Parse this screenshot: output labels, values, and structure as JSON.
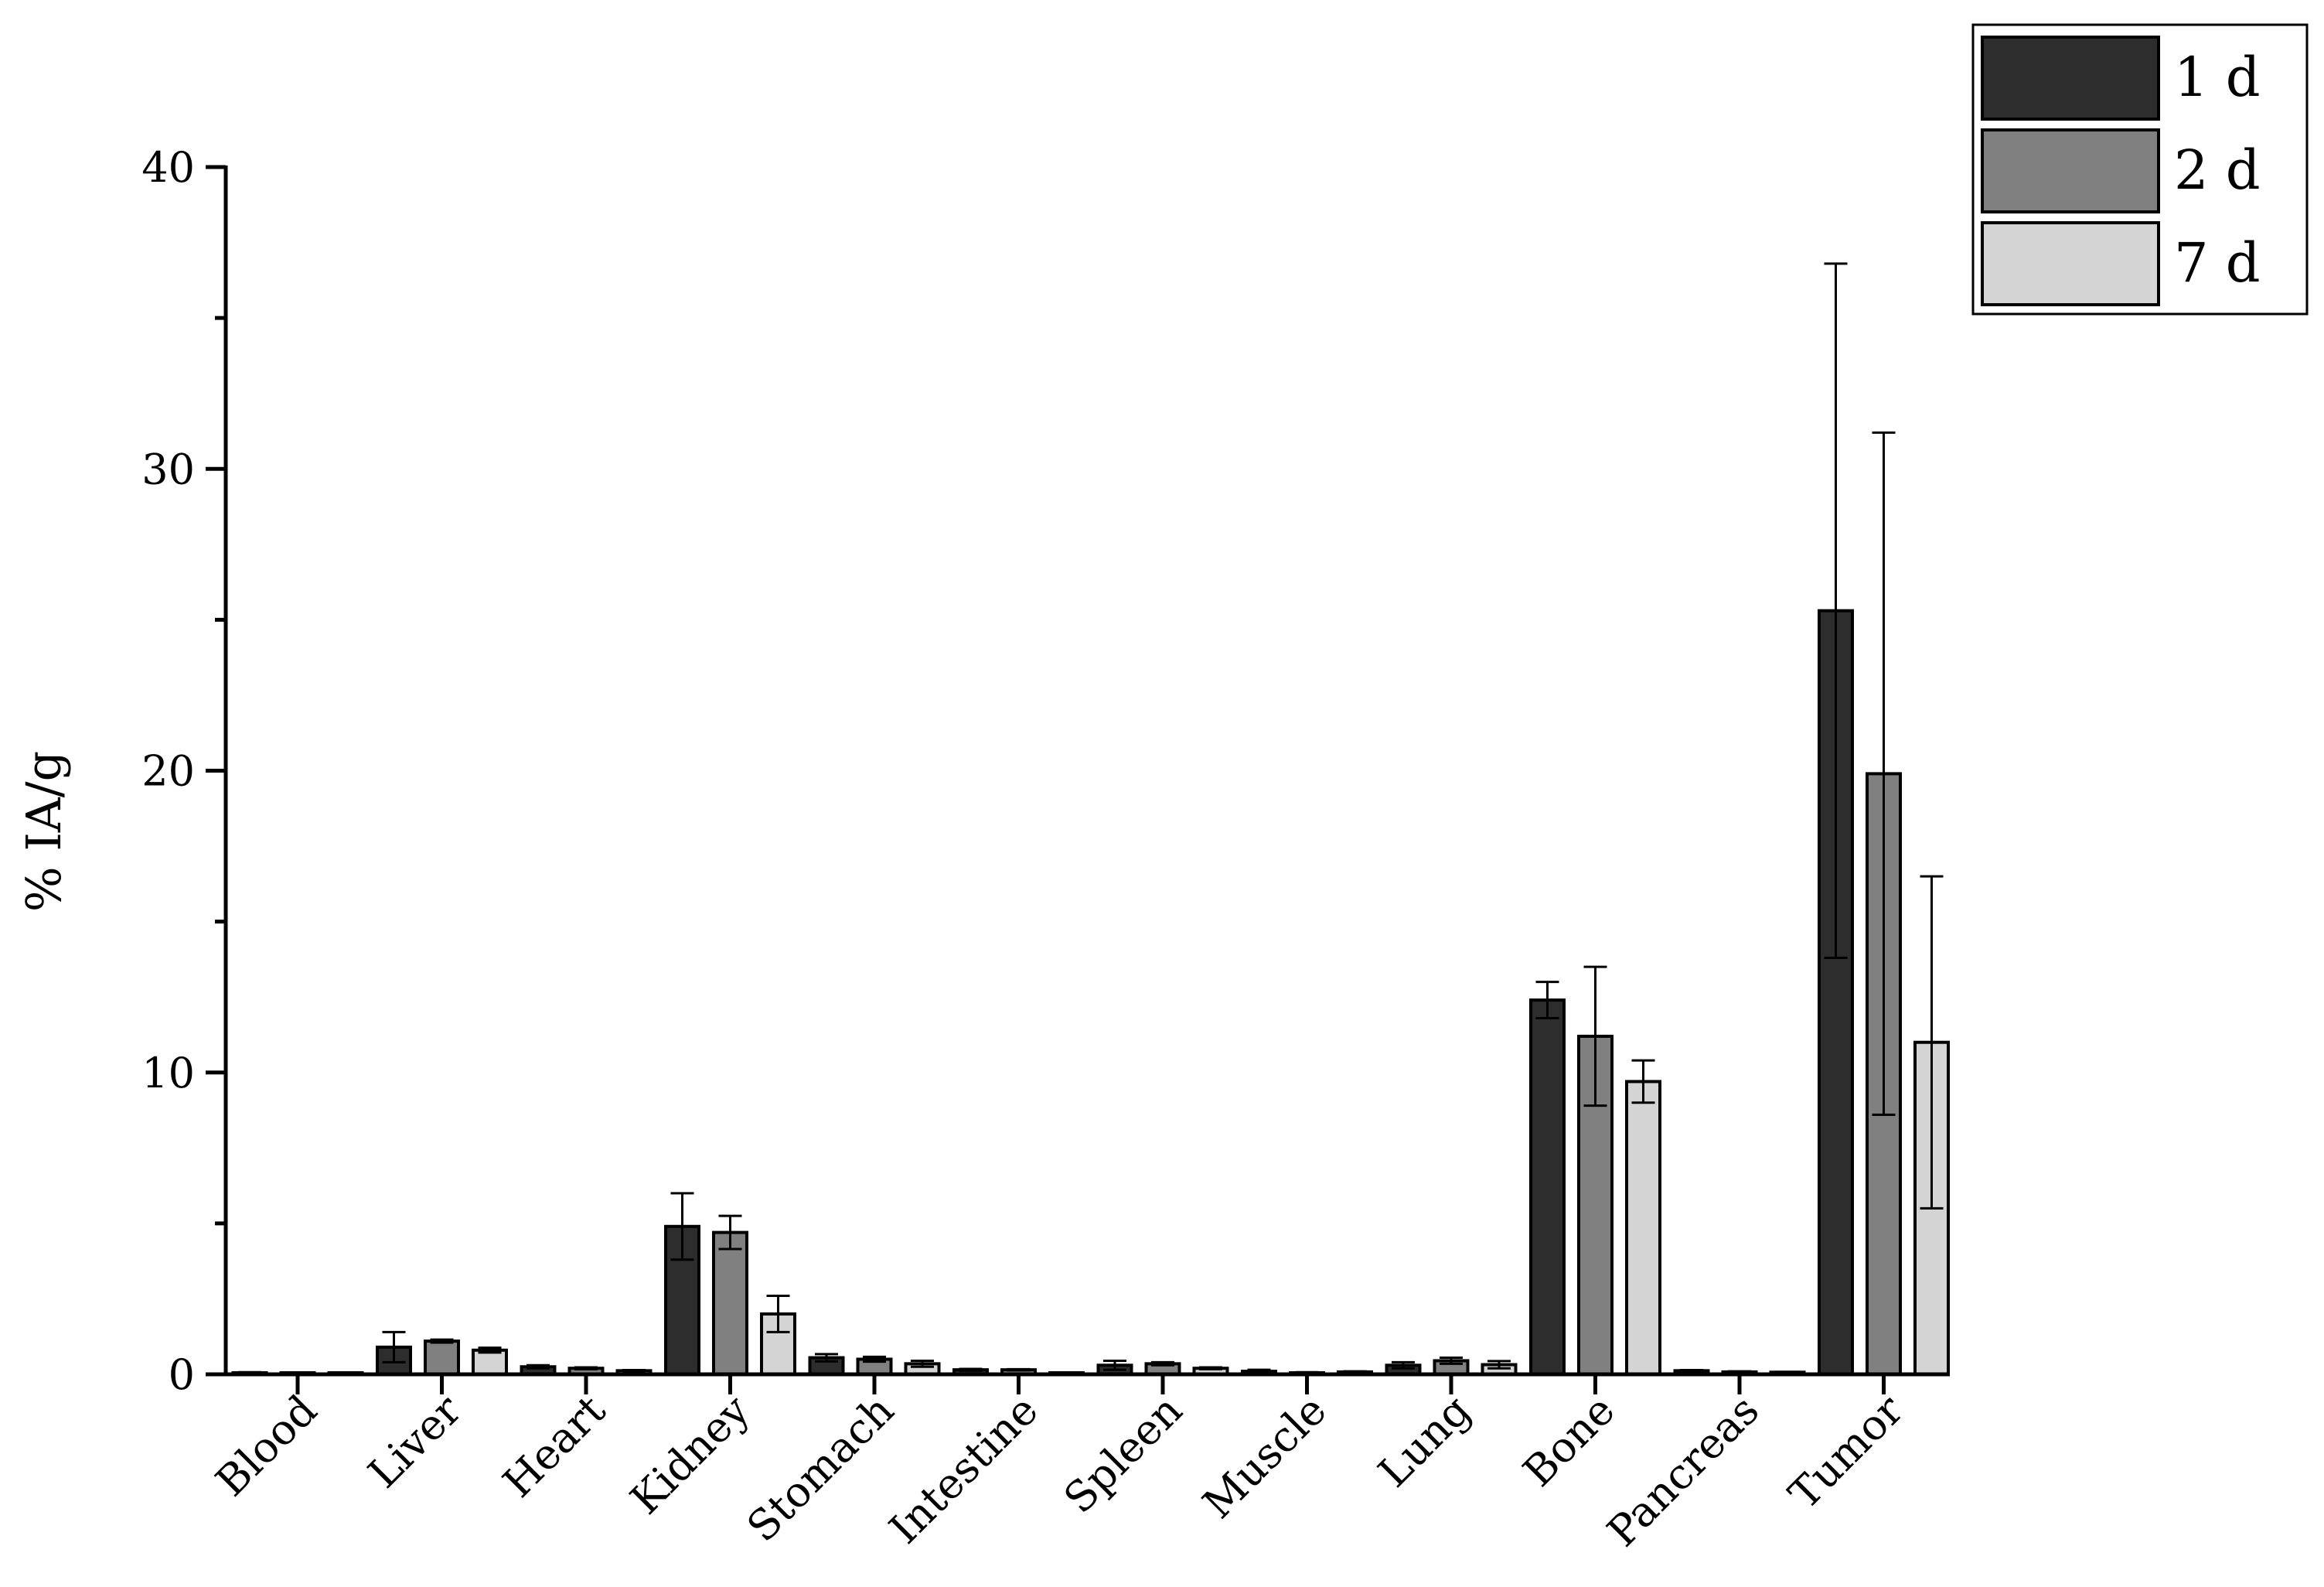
{
  "chart_data": {
    "type": "bar",
    "categories": [
      "Blood",
      "Liver",
      "Heart",
      "Kidney",
      "Stomach",
      "Intestine",
      "Spleen",
      "Muscle",
      "Lung",
      "Bone",
      "Pancreas",
      "Tumor"
    ],
    "ylabel": "% IA/g",
    "ylim": [
      0,
      40
    ],
    "yticks": [
      0,
      10,
      20,
      30,
      40
    ],
    "grid": false,
    "legend_position": "top-right",
    "series": [
      {
        "name": "1 d",
        "color": "#2d2d2d",
        "values": [
          0.05,
          0.9,
          0.25,
          4.9,
          0.55,
          0.15,
          0.3,
          0.1,
          0.3,
          12.4,
          0.12,
          25.3
        ],
        "errors": [
          0.02,
          0.5,
          0.05,
          1.1,
          0.12,
          0.03,
          0.15,
          0.05,
          0.1,
          0.6,
          0.02,
          11.5
        ]
      },
      {
        "name": "2 d",
        "color": "#808080",
        "values": [
          0.03,
          1.1,
          0.2,
          4.7,
          0.5,
          0.15,
          0.35,
          0.05,
          0.45,
          11.2,
          0.08,
          19.9
        ],
        "errors": [
          0.01,
          0.05,
          0.03,
          0.55,
          0.08,
          0.02,
          0.05,
          0.02,
          0.1,
          2.3,
          0.02,
          11.3
        ]
      },
      {
        "name": "7 d",
        "color": "#d4d4d4",
        "values": [
          0.02,
          0.8,
          0.12,
          2.0,
          0.35,
          0.05,
          0.2,
          0.08,
          0.32,
          9.7,
          0.07,
          11.0
        ],
        "errors": [
          0.01,
          0.08,
          0.02,
          0.6,
          0.1,
          0.01,
          0.03,
          0.02,
          0.12,
          0.7,
          0.01,
          5.5
        ]
      }
    ]
  }
}
